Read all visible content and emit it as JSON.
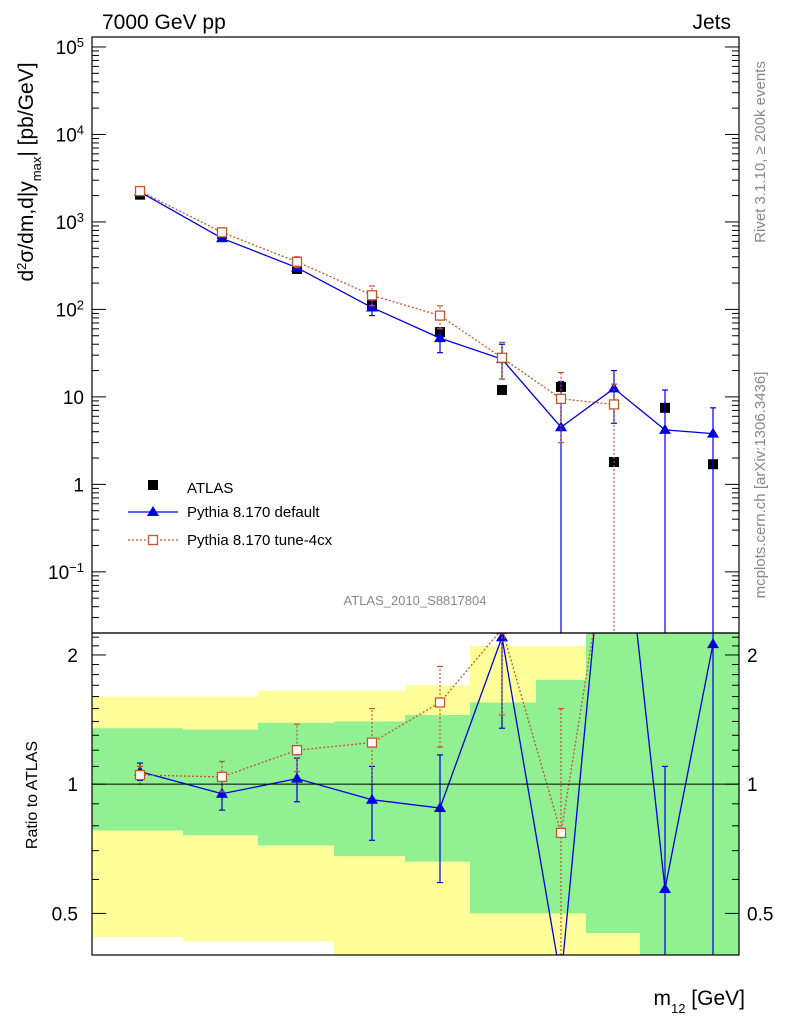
{
  "chart_data": {
    "type": "line",
    "header_left": "7000 GeV pp",
    "header_right": "Jets",
    "side_top": "Rivet 3.1.10, ≥ 200k events",
    "side_bottom": "mcplots.cern.ch [arXiv:1306.3436]",
    "analysis_label": "ATLAS_2010_S8817804",
    "xlabel": "m12 [GeV]",
    "ylabel": "d2σ/dm,d|ymax| [pb/GeV]",
    "ratio_ylabel": "Ratio to ATLAS",
    "log_y": true,
    "ylim": [
      0.02,
      130000
    ],
    "ratio_ylim": [
      0.4,
      2.25
    ],
    "y_ticks": [
      {
        "v": 0.1,
        "base": "10",
        "exp": "−1"
      },
      {
        "v": 1,
        "base": "1",
        "exp": ""
      },
      {
        "v": 10,
        "base": "10",
        "exp": ""
      },
      {
        "v": 100,
        "base": "10",
        "exp": "2"
      },
      {
        "v": 1000,
        "base": "10",
        "exp": "3"
      },
      {
        "v": 10000,
        "base": "10",
        "exp": "4"
      },
      {
        "v": 100000,
        "base": "10",
        "exp": "5"
      }
    ],
    "ratio_ticks": [
      {
        "v": 0.5,
        "label": "0.5"
      },
      {
        "v": 1,
        "label": "1"
      },
      {
        "v": 2,
        "label": "2"
      }
    ],
    "series": [
      {
        "name": "ATLAS",
        "color": "#000000",
        "marker": "square-filled",
        "values": [
          2050,
          730,
          290,
          115,
          55,
          12,
          13,
          1.8,
          7.5,
          1.7
        ]
      },
      {
        "name": "Pythia 8.170 default",
        "color": "#0000dd",
        "marker": "triangle-filled",
        "values": [
          2200,
          650,
          300,
          105,
          47,
          27,
          4.5,
          12.5,
          4.2,
          3.8
        ],
        "errors": [
          [
            2000,
            2400
          ],
          [
            600,
            700
          ],
          [
            280,
            320
          ],
          [
            85,
            125
          ],
          [
            32,
            62
          ],
          [
            16,
            40
          ],
          [
            0.001,
            15
          ],
          [
            5,
            20
          ],
          [
            0.001,
            12
          ],
          [
            0.001,
            7.5
          ]
        ]
      },
      {
        "name": "Pythia 8.170 tune-4cx",
        "color": "#c0582c",
        "marker": "square-open",
        "values": [
          2250,
          760,
          350,
          145,
          85,
          28,
          9.5,
          8.2
        ],
        "errors": [
          [
            2050,
            2450
          ],
          [
            680,
            840
          ],
          [
            300,
            400
          ],
          [
            110,
            185
          ],
          [
            60,
            110
          ],
          [
            16,
            42
          ],
          [
            3,
            19
          ],
          [
            0.001,
            14
          ]
        ]
      }
    ],
    "ratio_series": [
      {
        "name": "Pythia 8.170 default",
        "values": [
          1.07,
          0.95,
          1.03,
          0.92,
          0.88,
          2.2,
          0.35,
          7,
          0.57,
          2.12
        ],
        "errors": [
          [
            1.02,
            1.12
          ],
          [
            0.87,
            1.03
          ],
          [
            0.91,
            1.15
          ],
          [
            0.74,
            1.1
          ],
          [
            0.59,
            1.17
          ],
          [
            1.35,
            2.3
          ],
          [
            0.3,
            0.4
          ],
          [
            5,
            9
          ],
          [
            0.3,
            1.1
          ],
          [
            0.3,
            2.3
          ]
        ]
      },
      {
        "name": "Pythia 8.170 tune-4cx",
        "values": [
          1.05,
          1.04,
          1.2,
          1.25,
          1.55,
          2.3,
          0.77,
          4.5
        ],
        "errors": [
          [
            1.0,
            1.1
          ],
          [
            0.96,
            1.13
          ],
          [
            1.07,
            1.38
          ],
          [
            1.0,
            1.5
          ],
          [
            1.22,
            1.88
          ],
          [
            1.45,
            2.35
          ],
          [
            0.4,
            1.5
          ],
          [
            3,
            6
          ]
        ]
      }
    ],
    "bands": {
      "green": [
        [
          0.78,
          1.35
        ],
        [
          0.76,
          1.34
        ],
        [
          0.72,
          1.39
        ],
        [
          0.68,
          1.4
        ],
        [
          0.66,
          1.45
        ],
        [
          0.5,
          1.55
        ],
        [
          0.5,
          1.75
        ],
        [
          0.45,
          2.4
        ],
        [
          0.4,
          2.4
        ],
        [
          0.4,
          2.4
        ]
      ],
      "yellow": [
        [
          0.44,
          1.6
        ],
        [
          0.43,
          1.6
        ],
        [
          0.43,
          1.65
        ],
        [
          0.4,
          1.65
        ],
        [
          0.4,
          1.7
        ],
        [
          0.4,
          2.1
        ],
        [
          0.4,
          2.1
        ],
        [
          0.4,
          2.4
        ],
        [
          0.4,
          2.4
        ],
        [
          0.4,
          2.4
        ]
      ]
    },
    "legend_position": "lower-left",
    "colors": {
      "green_band": "#91f091",
      "yellow_band": "#ffff99"
    }
  }
}
